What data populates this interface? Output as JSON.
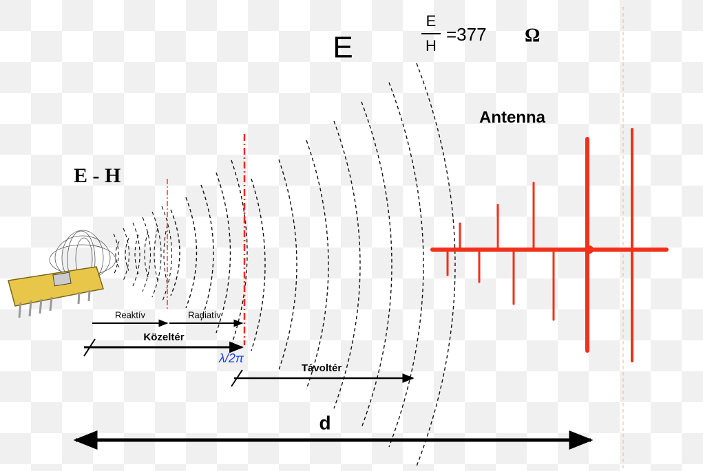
{
  "formula": {
    "numerator": "E",
    "denominator": "H",
    "equals": "=377",
    "unit": "Ω"
  },
  "labels": {
    "field": "E",
    "antenna": "Antenna",
    "near_source": "E - H",
    "reactive": "Reaktív",
    "radiative": "Radiatív",
    "near_field": "Közeltér",
    "boundary": "λ/2π",
    "far_field": "Távoltér",
    "distance": "d"
  }
}
